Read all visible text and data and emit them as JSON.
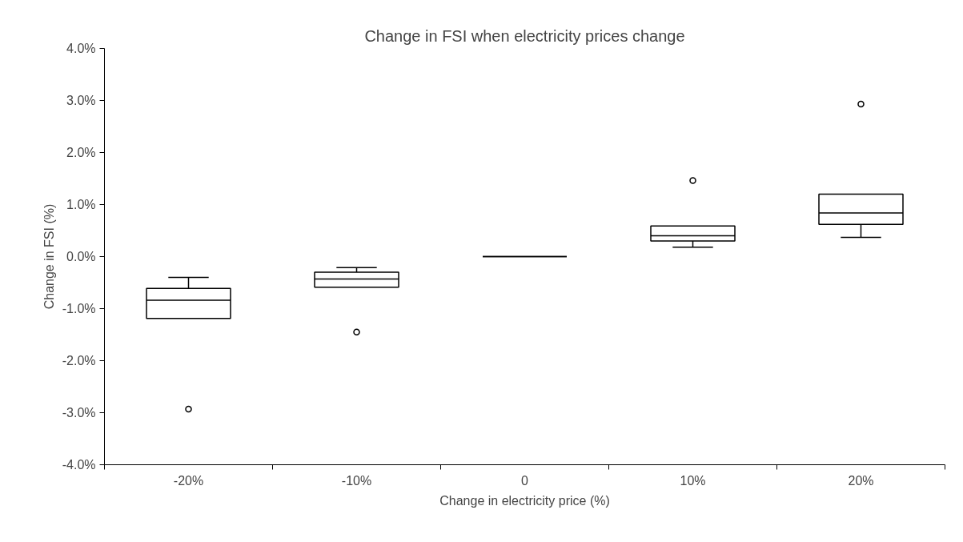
{
  "chart_data": {
    "type": "box",
    "title": "Change in FSI when electricity prices change",
    "xlabel": "Change in electricity price (%)",
    "ylabel": "Change in FSI (%)",
    "categories": [
      "-20%",
      "-10%",
      "0",
      "10%",
      "20%"
    ],
    "boxes": [
      {
        "low": -1.19,
        "q1": -1.19,
        "median": -0.84,
        "q3": -0.61,
        "high": -0.4,
        "outliers": [
          -2.93
        ]
      },
      {
        "low": -0.59,
        "q1": -0.59,
        "median": -0.43,
        "q3": -0.3,
        "high": -0.21,
        "outliers": [
          -1.45
        ]
      },
      {
        "low": 0,
        "q1": 0,
        "median": 0,
        "q3": 0,
        "high": 0
      },
      {
        "low": 0.18,
        "q1": 0.3,
        "median": 0.4,
        "q3": 0.59,
        "high": 0.59,
        "outliers": [
          1.46
        ]
      },
      {
        "low": 0.37,
        "q1": 0.62,
        "median": 0.84,
        "q3": 1.2,
        "high": 1.2,
        "outliers": [
          2.93
        ]
      }
    ],
    "ylim": [
      -4,
      4
    ],
    "yticks": [
      {
        "value": -4,
        "label": "-4.0%"
      },
      {
        "value": -3,
        "label": "-3.0%"
      },
      {
        "value": -2,
        "label": "-2.0%"
      },
      {
        "value": -1,
        "label": "-1.0%"
      },
      {
        "value": 0,
        "label": "0.0%"
      },
      {
        "value": 1,
        "label": "1.0%"
      },
      {
        "value": 2,
        "label": "2.0%"
      },
      {
        "value": 3,
        "label": "3.0%"
      },
      {
        "value": 4,
        "label": "4.0%"
      }
    ]
  }
}
